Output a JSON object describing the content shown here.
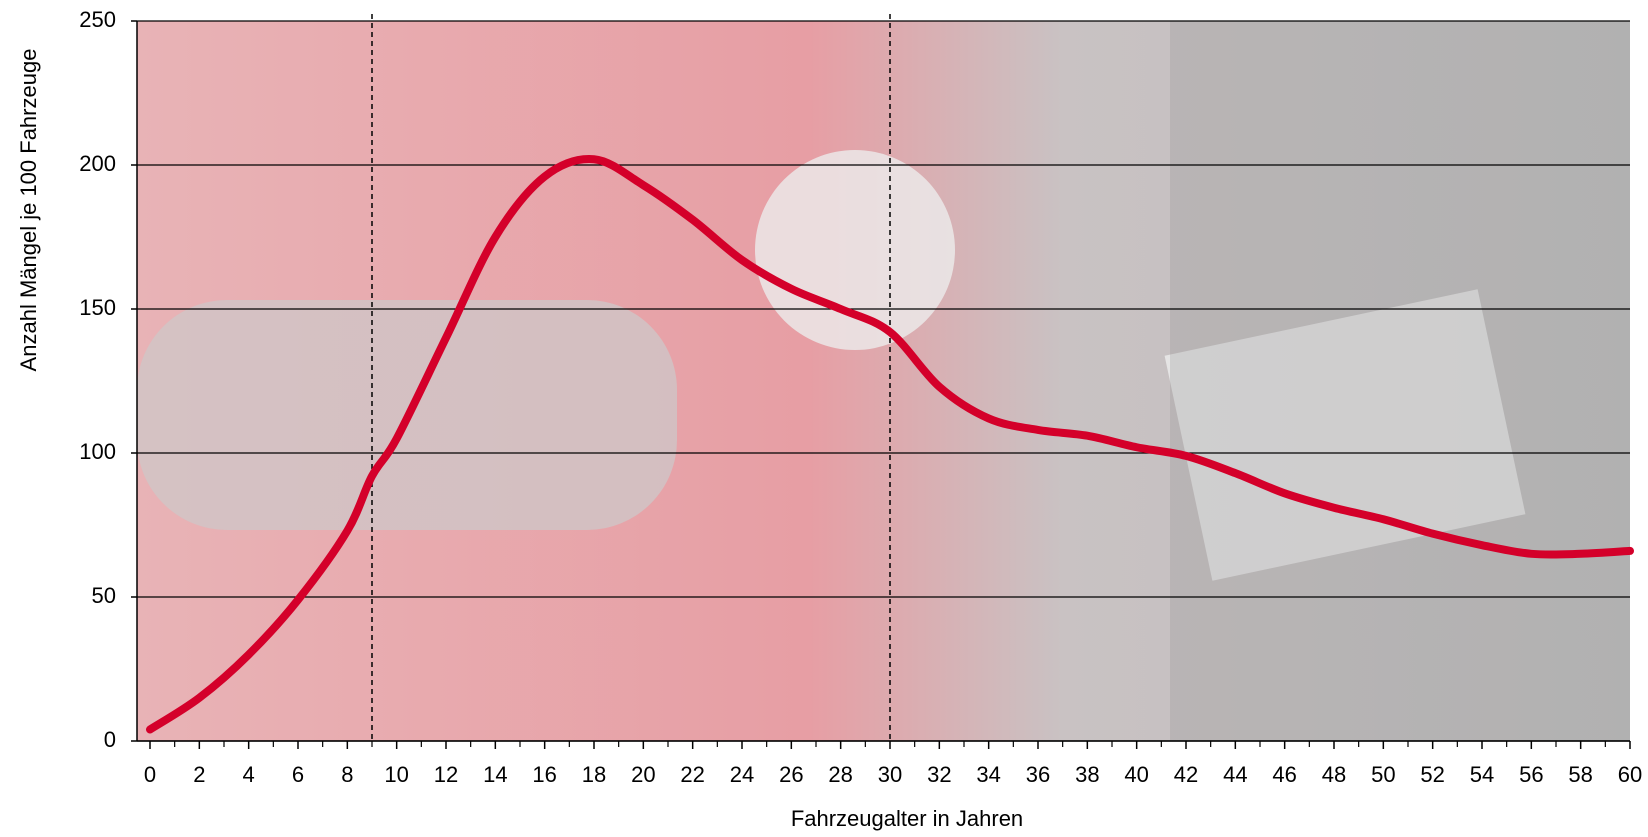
{
  "chart_data": {
    "type": "line",
    "x_label": "Fahrzeugalter  in Jahren",
    "y_label": "Anzahl Mängel je 100 Fahrzeuge",
    "x": [
      0,
      2,
      4,
      6,
      8,
      9,
      10,
      12,
      14,
      16,
      18,
      20,
      22,
      24,
      26,
      28,
      30,
      32,
      34,
      36,
      38,
      40,
      42,
      44,
      46,
      48,
      50,
      52,
      54,
      56,
      58,
      60
    ],
    "series": [
      {
        "name": "Mängel",
        "color": "#d4002a",
        "values": [
          4,
          15,
          30,
          49,
          73,
          92,
          105,
          140,
          175,
          196,
          202,
          193,
          181,
          167,
          157,
          150,
          142,
          123,
          112,
          108,
          106,
          102,
          99,
          93,
          86,
          81,
          77,
          72,
          68,
          65,
          65,
          66
        ]
      }
    ],
    "xlim": [
      0,
      60
    ],
    "ylim": [
      0,
      250
    ],
    "xticks": [
      0,
      2,
      4,
      6,
      8,
      10,
      12,
      14,
      16,
      18,
      20,
      22,
      24,
      26,
      28,
      30,
      32,
      34,
      36,
      38,
      40,
      42,
      44,
      46,
      48,
      50,
      52,
      54,
      56,
      58,
      60
    ],
    "xminorticks": [
      1,
      3,
      5,
      7,
      9,
      11,
      13,
      15,
      17,
      19,
      21,
      23,
      25,
      27,
      29,
      31,
      33,
      35,
      37,
      39,
      41,
      43,
      45,
      47,
      49,
      51,
      53,
      55,
      57,
      59
    ],
    "yticks": [
      0,
      50,
      100,
      150,
      200,
      250
    ],
    "reference_lines_x": [
      9,
      30
    ],
    "grid": true
  }
}
